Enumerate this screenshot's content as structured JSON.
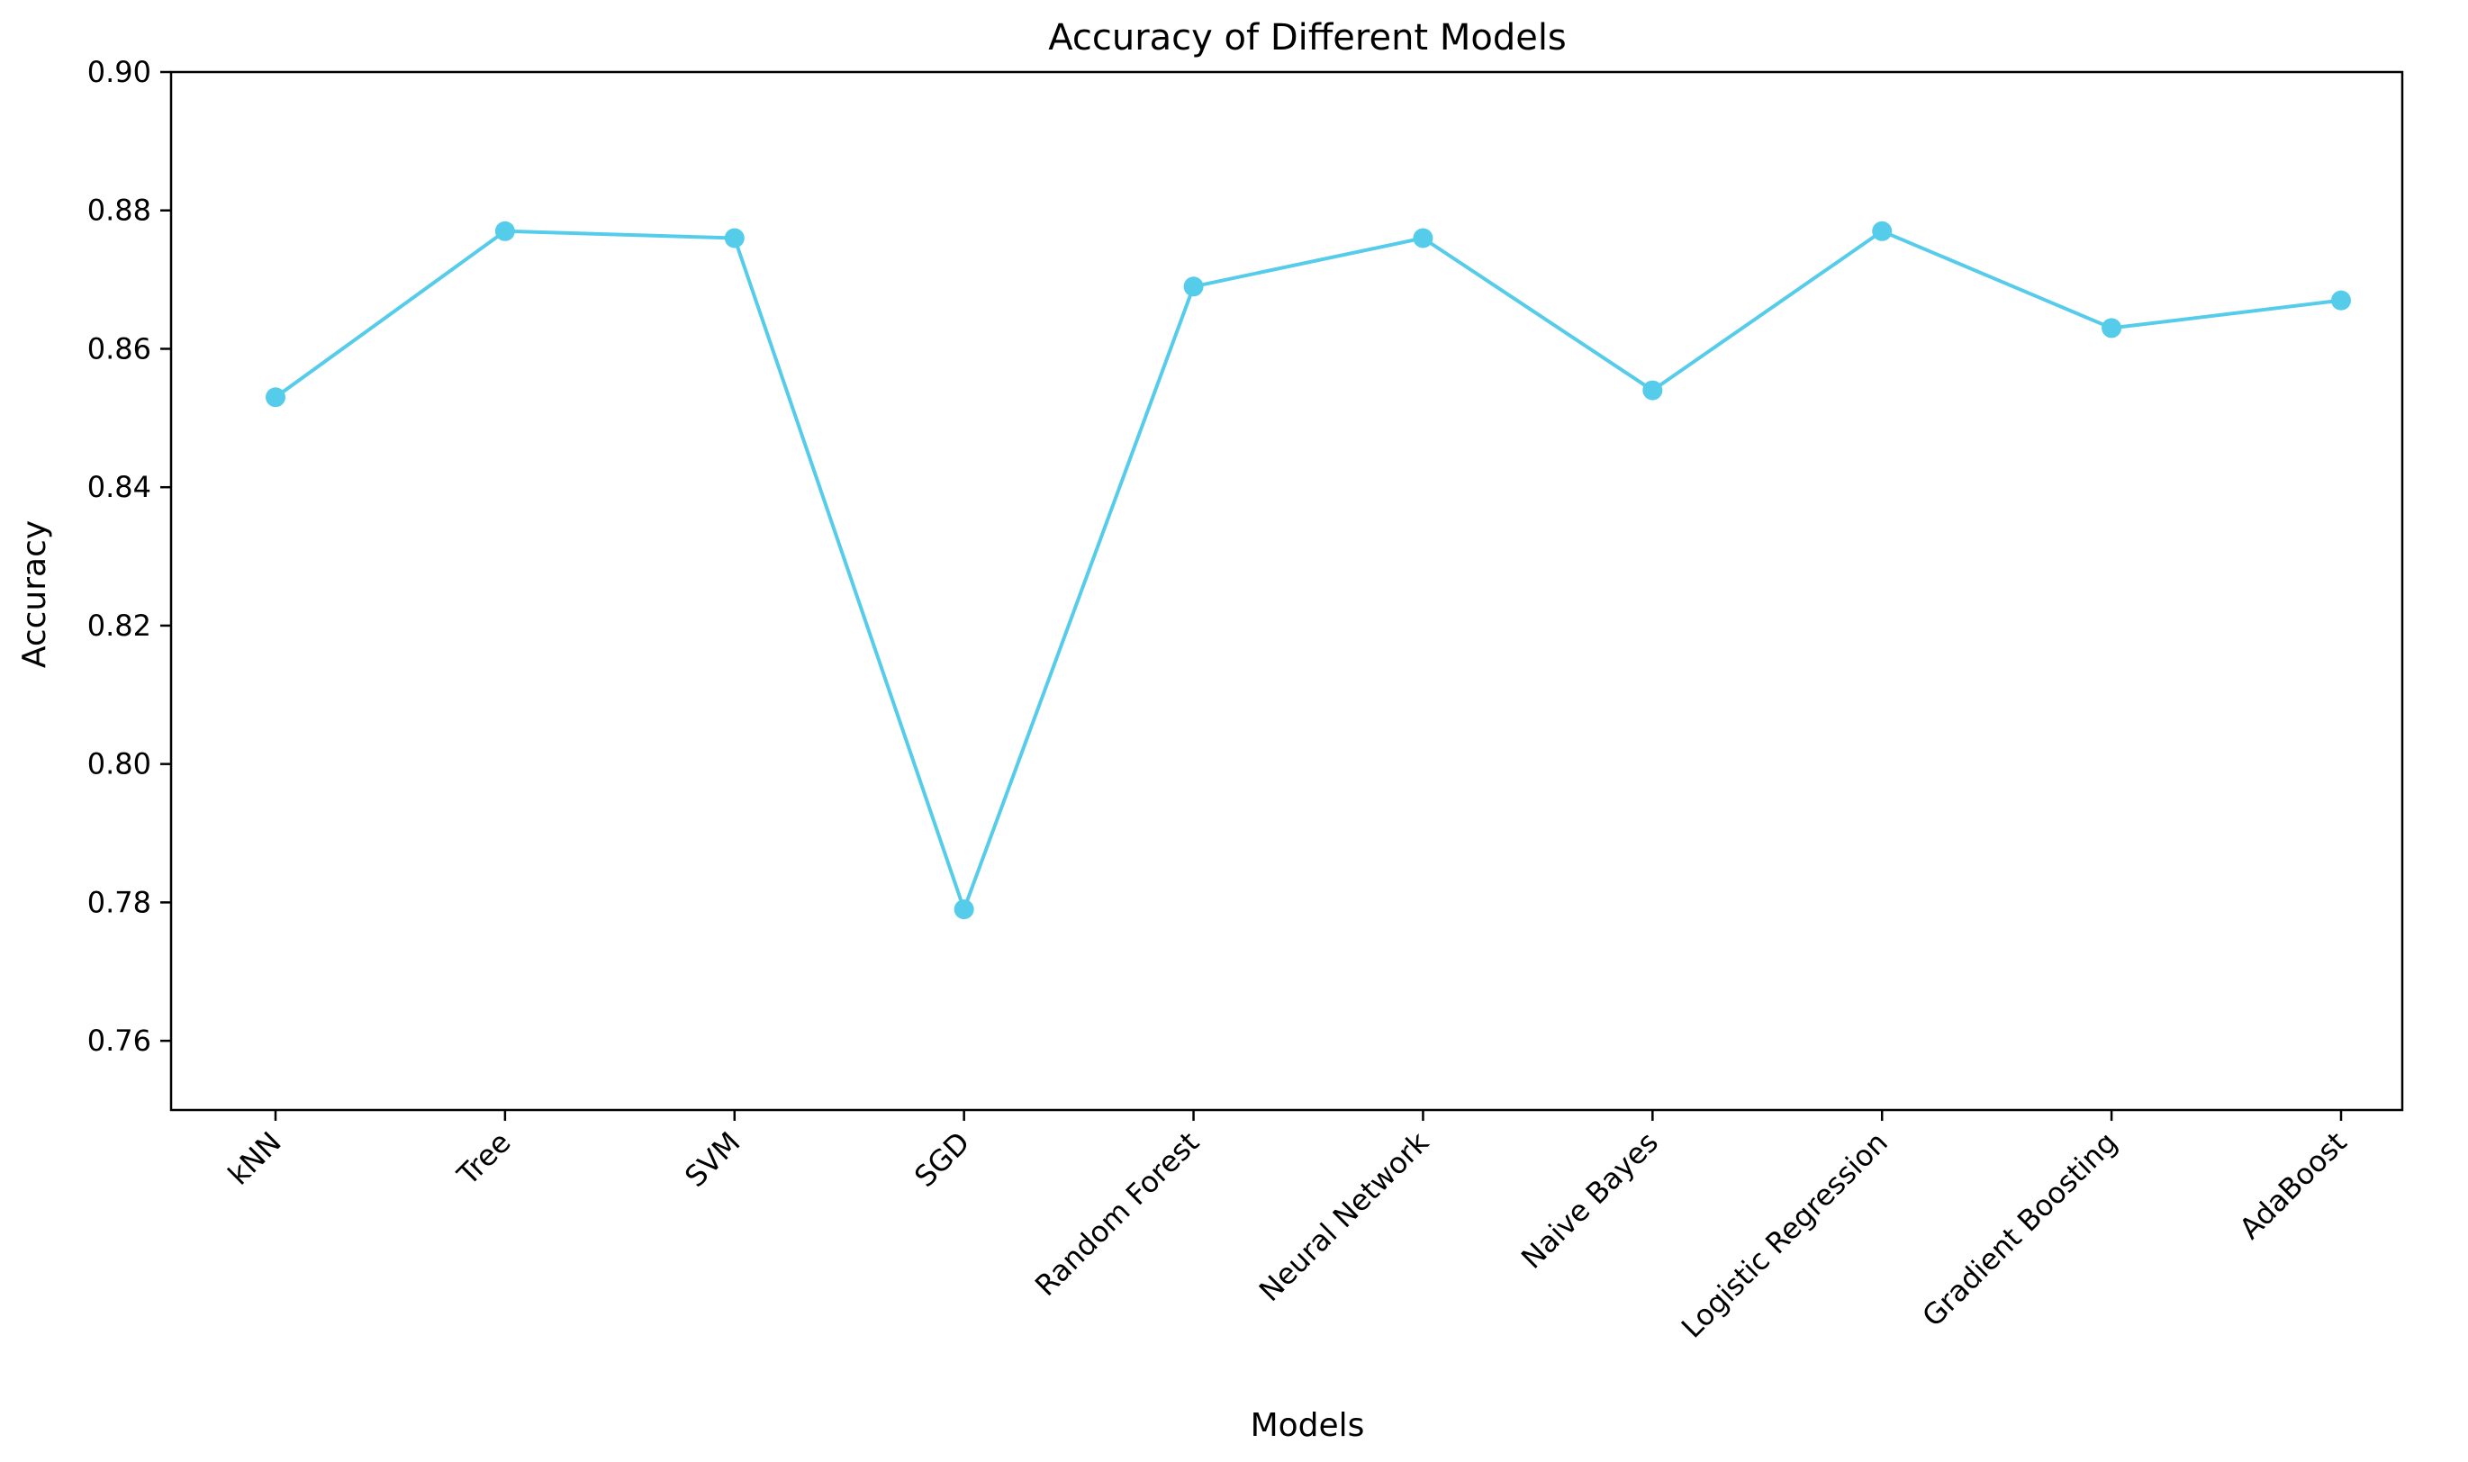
{
  "chart_data": {
    "type": "line",
    "title": "Accuracy of Different Models",
    "xlabel": "Models",
    "ylabel": "Accuracy",
    "categories": [
      "kNN",
      "Tree",
      "SVM",
      "SGD",
      "Random Forest",
      "Neural Network",
      "Naive Bayes",
      "Logistic Regression",
      "Gradient Boosting",
      "AdaBoost"
    ],
    "values": [
      0.853,
      0.877,
      0.876,
      0.779,
      0.869,
      0.876,
      0.854,
      0.877,
      0.863,
      0.867
    ],
    "ylim": [
      0.75,
      0.9
    ],
    "yticks": [
      "0.76",
      "0.78",
      "0.80",
      "0.82",
      "0.84",
      "0.86",
      "0.88",
      "0.90"
    ],
    "grid": false,
    "line_color": "#56CCEB",
    "marker": "circle"
  }
}
